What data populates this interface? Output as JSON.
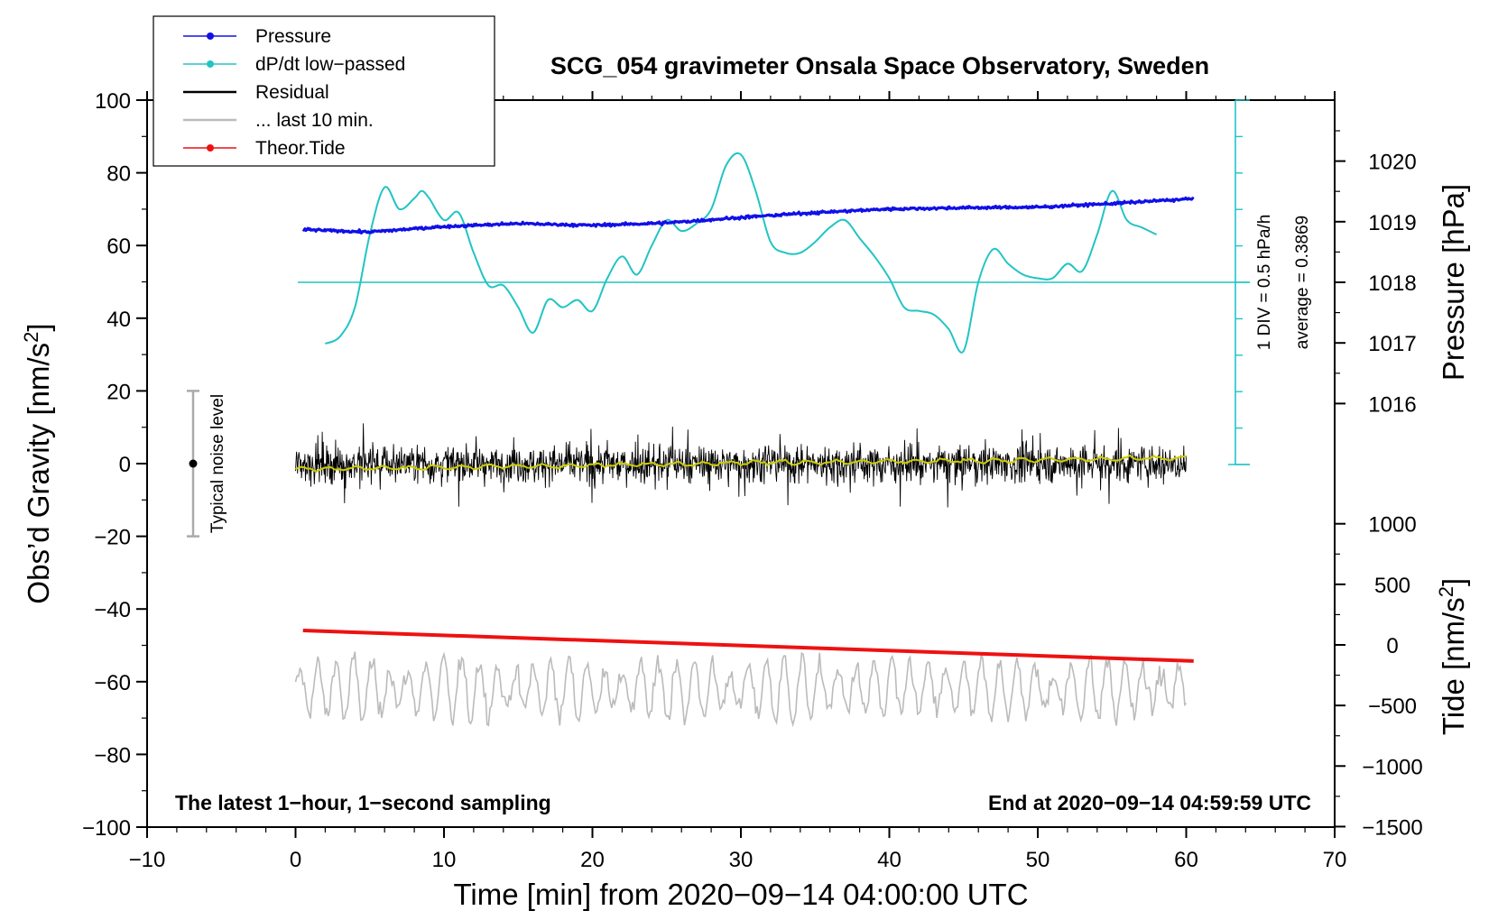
{
  "chart_data": {
    "type": "line",
    "title": "SCG_054 gravimeter Onsala Space Observatory, Sweden",
    "xlabel": "Time [min] from 2020−09−14 04:00:00 UTC",
    "ylabel": "Obs’d Gravity [nm/s",
    "ylabel_sup": "2",
    "ylabel_end": "]",
    "xlim": [
      -10,
      70
    ],
    "ylim": [
      -100,
      100
    ],
    "xticks": [
      -10,
      0,
      10,
      20,
      30,
      40,
      50,
      60,
      70
    ],
    "xtick_labels": [
      "−10",
      "0",
      "10",
      "20",
      "30",
      "40",
      "50",
      "60",
      "70"
    ],
    "yticks": [
      -100,
      -80,
      -60,
      -40,
      -20,
      0,
      20,
      40,
      60,
      80,
      100
    ],
    "ytick_labels": [
      "−100",
      "−80",
      "−60",
      "−40",
      "−20",
      "0",
      "20",
      "40",
      "60",
      "80",
      "100"
    ],
    "pressure_axis": {
      "label": "Pressure [hPa]",
      "ticks": [
        1016,
        1017,
        1018,
        1019,
        1020
      ],
      "tick_labels": [
        "1016",
        "1017",
        "1018",
        "1019",
        "1020"
      ]
    },
    "tide_axis": {
      "label": "Tide [nm/s",
      "label_sup": "2",
      "label_end": "]",
      "ticks": [
        -1500,
        -1000,
        -500,
        0,
        500,
        1000
      ],
      "tick_labels": [
        "−1500",
        "−1000",
        "−500",
        "0",
        "500",
        "1000"
      ]
    },
    "legend": [
      {
        "label": "Pressure",
        "color": "#1010e8",
        "marker": true
      },
      {
        "label": "dP/dt low−passed",
        "color": "#22c4c4",
        "marker": true
      },
      {
        "label": "Residual",
        "color": "#000000",
        "marker": false
      },
      {
        "label": "... last 10 min.",
        "color": "#bbbbbb",
        "marker": false
      },
      {
        "label": "Theor.Tide",
        "color": "#ee1111",
        "marker": true
      }
    ],
    "series": [
      {
        "name": "Pressure",
        "units": "hPa",
        "color": "#1010e8",
        "x": [
          0.5,
          5,
          10,
          15,
          20,
          25,
          30,
          35,
          40,
          45,
          50,
          55,
          60.5
        ],
        "y": [
          1018.87,
          1018.83,
          1018.92,
          1018.97,
          1018.94,
          1018.98,
          1019.07,
          1019.15,
          1019.21,
          1019.23,
          1019.24,
          1019.3,
          1019.38
        ]
      },
      {
        "name": "dP/dt low-passed",
        "units": "gravity-axis scale",
        "color": "#22c4c4",
        "x": [
          2,
          3,
          4,
          5,
          6,
          7,
          8,
          8.5,
          9,
          10,
          11,
          12,
          13,
          14,
          15,
          16,
          17,
          18,
          19,
          20,
          21,
          22,
          23,
          24,
          25,
          26,
          27,
          28,
          29,
          30,
          31,
          32,
          33,
          34,
          35,
          36,
          37,
          38,
          39,
          40,
          41,
          42,
          43,
          44,
          45,
          46,
          47,
          48,
          49,
          50,
          51,
          52,
          53,
          54,
          55,
          56,
          57,
          58
        ],
        "y": [
          33,
          35,
          43,
          63,
          76,
          70,
          73,
          75,
          73,
          67,
          69,
          58,
          49,
          49,
          43,
          36,
          45,
          43,
          45,
          42,
          51,
          57,
          52,
          60,
          67,
          64,
          66,
          70,
          82,
          85,
          75,
          61,
          58,
          58,
          61,
          65,
          67,
          62,
          57,
          51,
          43,
          42,
          41,
          37,
          31,
          50,
          59,
          55,
          52,
          51,
          51,
          55,
          53,
          63,
          75,
          67,
          65,
          63
        ]
      },
      {
        "name": "Residual",
        "units": "nm/s2",
        "color": "#000000",
        "x_range": [
          0,
          60
        ],
        "amplitude_typical": 10
      },
      {
        "name": "Residual smoothed",
        "units": "nm/s2",
        "color": "#cccc00",
        "x": [
          0,
          10,
          20,
          30,
          40,
          50,
          60
        ],
        "y": [
          -1.5,
          -1,
          -0.5,
          0.3,
          0.6,
          1,
          1.5
        ]
      },
      {
        "name": "... last 10 min.",
        "units": "nm/s2",
        "color": "#bbbbbb",
        "x_range": [
          0,
          60
        ],
        "center": -62
      },
      {
        "name": "Theor.Tide",
        "units": "nm/s2",
        "color": "#ee1111",
        "x": [
          0.5,
          60.5
        ],
        "y": [
          119,
          -133
        ]
      }
    ],
    "annotations": {
      "noise_label": "Typical noise level",
      "noise_range": [
        -20,
        20
      ],
      "div_label": "1 DIV = 0.5 hPa/h",
      "average_label": "average = 0.3869",
      "bottom_left": "The latest 1−hour, 1−second sampling",
      "bottom_right": "End at 2020−09−14 04:59:59 UTC"
    }
  }
}
